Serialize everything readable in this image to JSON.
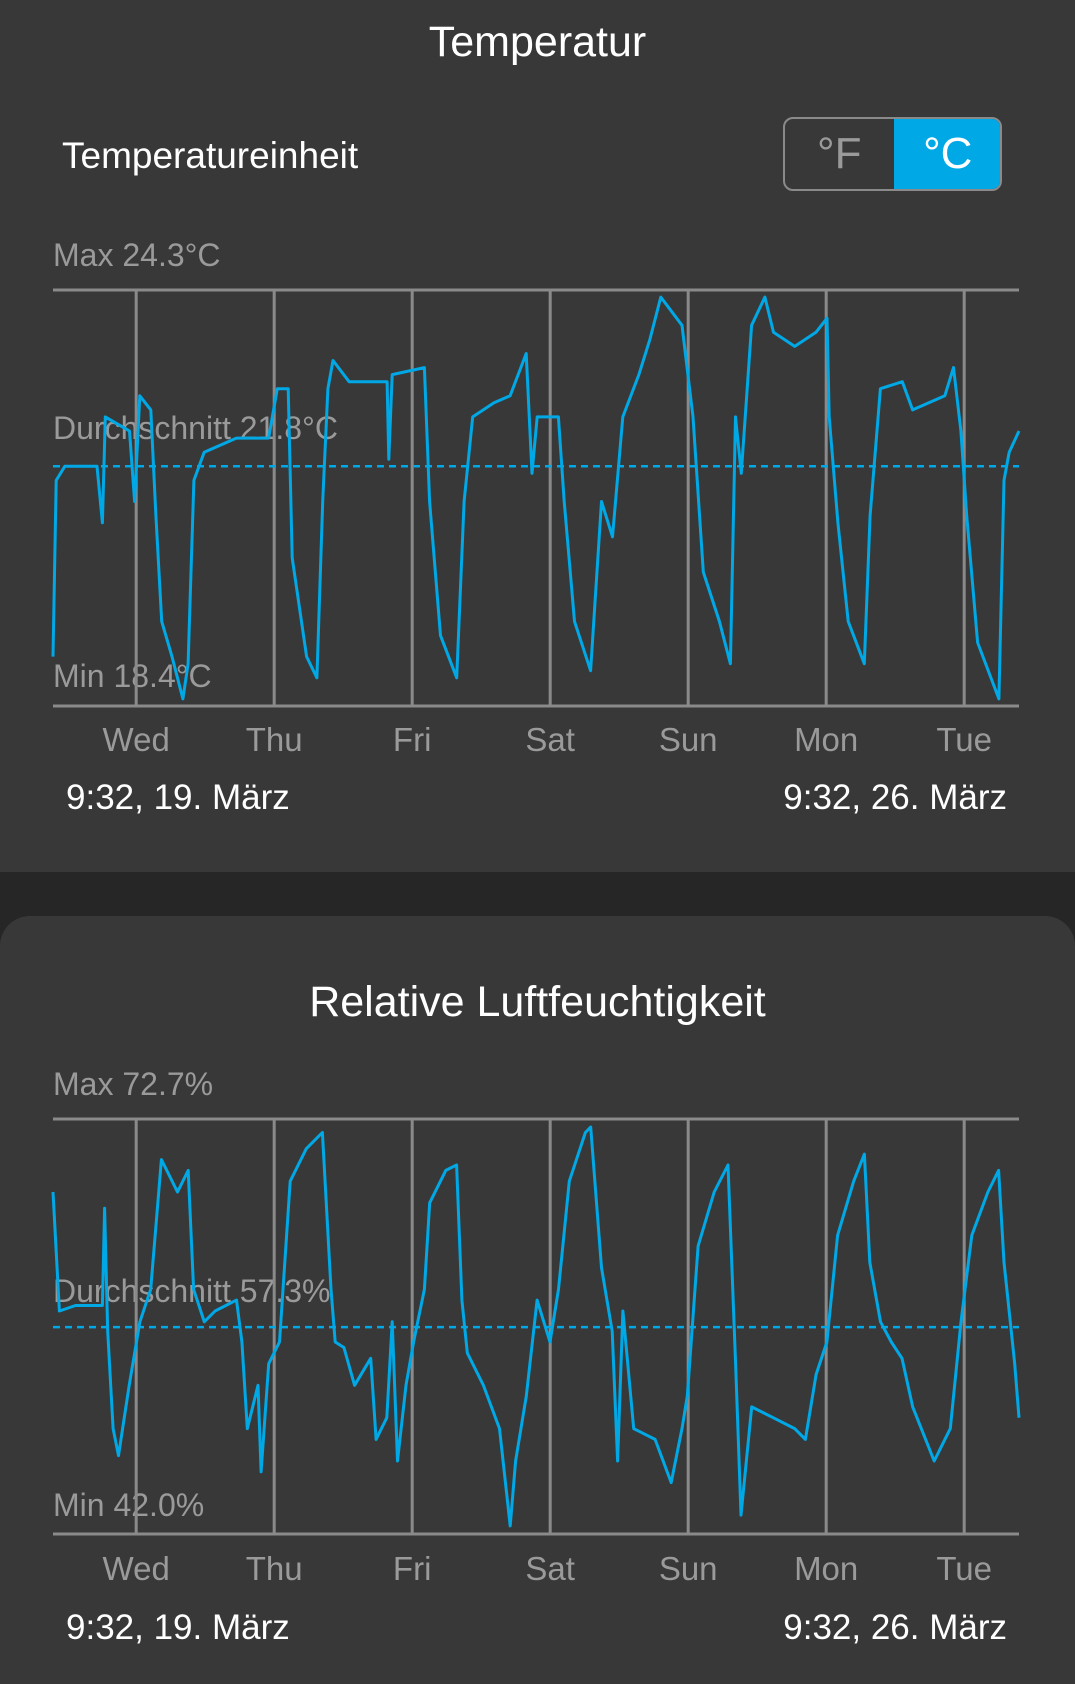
{
  "temperature": {
    "title": "Temperatur",
    "unit_label": "Temperatureinheit",
    "unit_options": [
      "°F",
      "°C"
    ],
    "selected_unit": "°C",
    "max_label": "Max 24.3°C",
    "avg_label": "Durchschnitt 21.8°C",
    "min_label": "Min 18.4°C",
    "start_label": "9:32,  19. März",
    "end_label": "9:32,  26. März"
  },
  "humidity": {
    "title": "Relative Luftfeuchtigkeit",
    "max_label": "Max 72.7%",
    "avg_label": "Durchschnitt 57.3%",
    "min_label": "Min 42.0%",
    "start_label": "9:32,  19. März",
    "end_label": "9:32,  26. März"
  },
  "colors": {
    "accent": "#00a8e6",
    "card": "#383838",
    "background": "#262626",
    "grid": "#8a8a8a"
  },
  "chart_data": [
    {
      "type": "line",
      "title": "Temperatur",
      "unit": "°C",
      "ylim": [
        18.4,
        24.3
      ],
      "max": 24.3,
      "min": 18.4,
      "average": 21.8,
      "time_range": [
        "19.03 09:32",
        "26.03 09:32"
      ],
      "ticks": [
        {
          "label": "Wed",
          "time": "20.03 00:00"
        },
        {
          "label": "Thu",
          "time": "21.03 00:00"
        },
        {
          "label": "Fri",
          "time": "22.03 00:00"
        },
        {
          "label": "Sat",
          "time": "23.03 00:00"
        },
        {
          "label": "Sun",
          "time": "24.03 00:00"
        },
        {
          "label": "Mon",
          "time": "25.03 00:00"
        },
        {
          "label": "Tue",
          "time": "26.03 00:00"
        }
      ],
      "grid": true,
      "points": [
        [
          "19.03 09:32",
          19.1
        ],
        [
          "19.03 10:05",
          21.6
        ],
        [
          "19.03 11:35",
          21.8
        ],
        [
          "19.03 17:11",
          21.8
        ],
        [
          "19.03 18:08",
          21.0
        ],
        [
          "19.03 18:38",
          22.5
        ],
        [
          "19.03 22:50",
          22.3
        ],
        [
          "19.03 23:44",
          21.3
        ],
        [
          "20.03 00:38",
          22.8
        ],
        [
          "20.03 02:32",
          22.6
        ],
        [
          "20.03 03:26",
          21.1
        ],
        [
          "20.03 04:26",
          19.6
        ],
        [
          "20.03 06:14",
          19.1
        ],
        [
          "20.03 08:08",
          18.5
        ],
        [
          "20.03 09:02",
          19.0
        ],
        [
          "20.03 10:02",
          21.6
        ],
        [
          "20.03 11:50",
          22.0
        ],
        [
          "20.03 17:26",
          22.2
        ],
        [
          "20.03 23:02",
          22.2
        ],
        [
          "21.03 00:32",
          22.9
        ],
        [
          "21.03 02:26",
          22.9
        ],
        [
          "21.03 03:08",
          20.5
        ],
        [
          "21.03 05:38",
          19.1
        ],
        [
          "21.03 07:26",
          18.8
        ],
        [
          "21.03 08:26",
          21.3
        ],
        [
          "21.03 09:20",
          22.9
        ],
        [
          "21.03 10:14",
          23.3
        ],
        [
          "21.03 13:02",
          23.0
        ],
        [
          "21.03 19:38",
          23.0
        ],
        [
          "21.03 19:56",
          21.9
        ],
        [
          "21.03 20:32",
          23.1
        ],
        [
          "22.03 02:08",
          23.2
        ],
        [
          "22.03 03:02",
          21.3
        ],
        [
          "22.03 04:56",
          19.4
        ],
        [
          "22.03 07:44",
          18.8
        ],
        [
          "22.03 09:02",
          21.3
        ],
        [
          "22.03 10:32",
          22.5
        ],
        [
          "22.03 14:14",
          22.7
        ],
        [
          "22.03 17:02",
          22.8
        ],
        [
          "22.03 19:50",
          23.4
        ],
        [
          "22.03 20:50",
          21.7
        ],
        [
          "22.03 21:44",
          22.5
        ],
        [
          "23.03 01:26",
          22.5
        ],
        [
          "23.03 02:26",
          21.3
        ],
        [
          "23.03 04:14",
          19.6
        ],
        [
          "23.03 07:02",
          18.9
        ],
        [
          "23.03 08:56",
          21.3
        ],
        [
          "23.03 10:50",
          20.8
        ],
        [
          "23.03 12:38",
          22.5
        ],
        [
          "23.03 15:26",
          23.1
        ],
        [
          "23.03 17:20",
          23.6
        ],
        [
          "23.03 19:14",
          24.2
        ],
        [
          "23.03 22:56",
          23.8
        ],
        [
          "24.03 00:50",
          22.5
        ],
        [
          "24.03 02:38",
          20.3
        ],
        [
          "24.03 05:26",
          19.6
        ],
        [
          "24.03 07:20",
          19.0
        ],
        [
          "24.03 08:14",
          22.5
        ],
        [
          "24.03 09:14",
          21.7
        ],
        [
          "24.03 11:02",
          23.8
        ],
        [
          "24.03 13:20",
          24.2
        ],
        [
          "24.03 14:50",
          23.7
        ],
        [
          "24.03 18:32",
          23.5
        ],
        [
          "24.03 22:14",
          23.7
        ],
        [
          "25.03 00:08",
          23.9
        ],
        [
          "25.03 00:32",
          22.5
        ],
        [
          "25.03 02:02",
          21.0
        ],
        [
          "25.03 03:50",
          19.6
        ],
        [
          "25.03 06:38",
          19.0
        ],
        [
          "25.03 07:38",
          21.1
        ],
        [
          "25.03 09:26",
          22.9
        ],
        [
          "25.03 13:14",
          23.0
        ],
        [
          "25.03 15:02",
          22.6
        ],
        [
          "25.03 20:38",
          22.8
        ],
        [
          "25.03 22:08",
          23.2
        ],
        [
          "25.03 23:26",
          22.3
        ],
        [
          "26.03 00:26",
          21.1
        ],
        [
          "26.03 02:20",
          19.3
        ],
        [
          "26.03 06:02",
          18.5
        ],
        [
          "26.03 06:56",
          21.6
        ],
        [
          "26.03 07:50",
          22.0
        ],
        [
          "26.03 09:32",
          22.3
        ]
      ]
    },
    {
      "type": "line",
      "title": "Relative Luftfeuchtigkeit",
      "unit": "%",
      "ylim": [
        42.0,
        72.7
      ],
      "max": 72.7,
      "min": 42.0,
      "average": 57.3,
      "time_range": [
        "19.03 09:32",
        "26.03 09:32"
      ],
      "ticks": [
        {
          "label": "Wed",
          "time": "20.03 00:00"
        },
        {
          "label": "Thu",
          "time": "21.03 00:00"
        },
        {
          "label": "Fri",
          "time": "22.03 00:00"
        },
        {
          "label": "Sat",
          "time": "23.03 00:00"
        },
        {
          "label": "Sun",
          "time": "24.03 00:00"
        },
        {
          "label": "Mon",
          "time": "25.03 00:00"
        },
        {
          "label": "Tue",
          "time": "26.03 00:00"
        }
      ],
      "grid": true,
      "points": [
        [
          "19.03 09:32",
          67.3
        ],
        [
          "19.03 10:39",
          58.5
        ],
        [
          "19.03 13:27",
          58.9
        ],
        [
          "19.03 18:07",
          58.9
        ],
        [
          "19.03 18:30",
          66.1
        ],
        [
          "19.03 19:03",
          57.0
        ],
        [
          "19.03 19:59",
          49.8
        ],
        [
          "19.03 20:55",
          47.8
        ],
        [
          "19.03 22:47",
          53.0
        ],
        [
          "20.03 00:39",
          57.7
        ],
        [
          "20.03 02:31",
          60.1
        ],
        [
          "20.03 04:23",
          69.7
        ],
        [
          "20.03 07:11",
          67.3
        ],
        [
          "20.03 09:03",
          68.9
        ],
        [
          "20.03 09:59",
          60.1
        ],
        [
          "20.03 11:51",
          57.7
        ],
        [
          "20.03 13:43",
          58.5
        ],
        [
          "20.03 17:27",
          59.3
        ],
        [
          "20.03 18:23",
          56.2
        ],
        [
          "20.03 19:19",
          49.8
        ],
        [
          "20.03 21:11",
          53.0
        ],
        [
          "20.03 21:44",
          46.6
        ],
        [
          "20.03 23:03",
          54.6
        ],
        [
          "21.03 00:55",
          56.2
        ],
        [
          "21.03 02:47",
          68.1
        ],
        [
          "21.03 05:35",
          70.5
        ],
        [
          "21.03 08:23",
          71.7
        ],
        [
          "21.03 09:53",
          60.1
        ],
        [
          "21.03 10:37",
          56.2
        ],
        [
          "21.03 12:07",
          55.8
        ],
        [
          "21.03 13:59",
          53.0
        ],
        [
          "21.03 16:47",
          55.0
        ],
        [
          "21.03 17:43",
          49.0
        ],
        [
          "21.03 19:35",
          50.6
        ],
        [
          "21.03 20:31",
          57.7
        ],
        [
          "21.03 21:27",
          47.4
        ],
        [
          "21.03 22:56",
          53.0
        ],
        [
          "22.03 00:15",
          56.2
        ],
        [
          "22.03 02:07",
          60.1
        ],
        [
          "22.03 03:03",
          66.5
        ],
        [
          "22.03 05:51",
          68.9
        ],
        [
          "22.03 07:43",
          69.3
        ],
        [
          "22.03 08:39",
          59.3
        ],
        [
          "22.03 09:35",
          55.4
        ],
        [
          "22.03 12:23",
          53.0
        ],
        [
          "22.03 15:11",
          49.8
        ],
        [
          "22.03 17:03",
          42.6
        ],
        [
          "22.03 17:59",
          47.4
        ],
        [
          "22.03 19:51",
          52.2
        ],
        [
          "22.03 21:43",
          59.3
        ],
        [
          "22.03 23:58",
          56.2
        ],
        [
          "23.03 01:27",
          60.1
        ],
        [
          "23.03 03:19",
          68.1
        ],
        [
          "23.03 06:07",
          71.7
        ],
        [
          "23.03 07:03",
          72.1
        ],
        [
          "23.03 08:55",
          61.7
        ],
        [
          "23.03 10:47",
          57.0
        ],
        [
          "23.03 11:43",
          47.4
        ],
        [
          "23.03 12:39",
          58.5
        ],
        [
          "23.03 14:31",
          49.8
        ],
        [
          "23.03 18:15",
          49.0
        ],
        [
          "23.03 21:03",
          45.8
        ],
        [
          "23.03 22:55",
          49.8
        ],
        [
          "23.03 23:51",
          52.2
        ],
        [
          "24.03 01:43",
          63.3
        ],
        [
          "24.03 04:31",
          67.3
        ],
        [
          "24.03 06:56",
          69.3
        ],
        [
          "24.03 08:15",
          54.6
        ],
        [
          "24.03 09:11",
          43.4
        ],
        [
          "24.03 11:03",
          51.4
        ],
        [
          "24.03 14:47",
          50.6
        ],
        [
          "24.03 18:31",
          49.8
        ],
        [
          "24.03 20:23",
          49.0
        ],
        [
          "24.03 22:15",
          53.8
        ],
        [
          "25.03 00:07",
          56.2
        ],
        [
          "25.03 01:59",
          64.1
        ],
        [
          "25.03 04:47",
          68.1
        ],
        [
          "25.03 06:39",
          70.1
        ],
        [
          "25.03 07:35",
          62.1
        ],
        [
          "25.03 09:27",
          57.7
        ],
        [
          "25.03 11:19",
          56.2
        ],
        [
          "25.03 13:11",
          55.0
        ],
        [
          "25.03 15:03",
          51.4
        ],
        [
          "25.03 18:47",
          47.4
        ],
        [
          "25.03 21:35",
          49.8
        ],
        [
          "25.03 23:27",
          57.7
        ],
        [
          "26.03 01:19",
          64.1
        ],
        [
          "26.03 04:07",
          67.3
        ],
        [
          "26.03 05:59",
          68.9
        ],
        [
          "26.03 06:55",
          62.1
        ],
        [
          "26.03 08:47",
          54.6
        ],
        [
          "26.03 09:32",
          50.6
        ]
      ]
    }
  ]
}
